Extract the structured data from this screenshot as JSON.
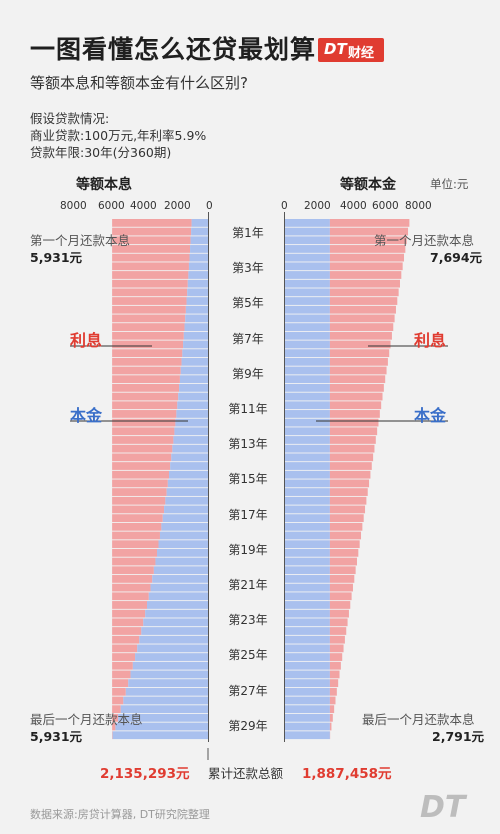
{
  "header": {
    "title": "一图看懂怎么还贷最划算",
    "brand_dt": "DT",
    "brand_name": "财经",
    "subtitle": "等额本息和等额本金有什么区别?"
  },
  "assumptions": {
    "heading": "假设贷款情况:",
    "line1": "商业贷款:100万元,年利率5.9%",
    "line2": "贷款年限:30年(分360期)"
  },
  "unit": "单位:元",
  "footer": {
    "total_label": "累计还款总额",
    "source": "数据来源:房贷计算器, DT研究院整理",
    "watermark": "DT"
  },
  "chart_data": {
    "type": "bar",
    "orientation": "horizontal-mirrored",
    "categories": [
      "第1年",
      "第3年",
      "第5年",
      "第7年",
      "第9年",
      "第11年",
      "第13年",
      "第15年",
      "第17年",
      "第19年",
      "第21年",
      "第23年",
      "第25年",
      "第27年",
      "第29年"
    ],
    "labels": {
      "interest": "利息",
      "principal": "本金"
    },
    "left": {
      "title": "等额本息",
      "ticks": [
        8000,
        6000,
        4000,
        2000,
        0
      ],
      "xlim": [
        0,
        8000
      ],
      "first_month_label": "第一个月还款本息",
      "first_month_value": "5,931元",
      "last_month_label": "最后一个月还款本息",
      "last_month_value": "5,931元",
      "monthly_total": 5931,
      "principal_first": 1015,
      "principal_last": 5902,
      "total": "2,135,293元"
    },
    "right": {
      "title": "等额本金",
      "ticks": [
        0,
        2000,
        4000,
        6000,
        8000
      ],
      "xlim": [
        0,
        8000
      ],
      "first_month_label": "第一个月还款本息",
      "first_month_value": "7,694元",
      "last_month_label": "最后一个月还款本息",
      "last_month_value": "2,791元",
      "principal": 2778,
      "total_first": 7694,
      "total_last": 2791,
      "total": "1,887,458元"
    },
    "colors": {
      "interest": "#f2a3a3",
      "principal": "#a9c0ee",
      "interest_text": "#e03c31",
      "principal_text": "#3a6fc9"
    }
  }
}
